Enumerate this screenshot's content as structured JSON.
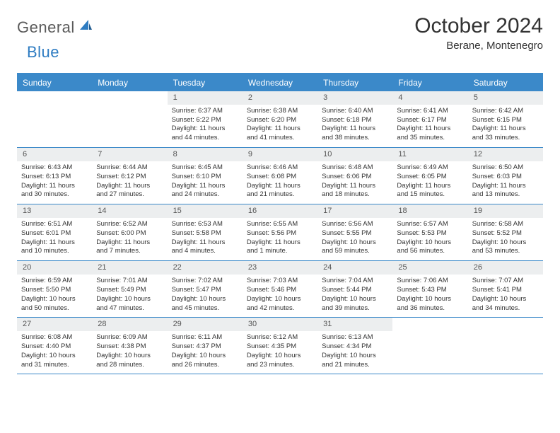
{
  "brand": {
    "text1": "General",
    "text2": "Blue"
  },
  "title": "October 2024",
  "location": "Berane, Montenegro",
  "dayHeaders": [
    "Sunday",
    "Monday",
    "Tuesday",
    "Wednesday",
    "Thursday",
    "Friday",
    "Saturday"
  ],
  "colors": {
    "headerBg": "#3b89c9",
    "dayNumBg": "#eceeef",
    "text": "#333333",
    "logoBlue": "#2e7cc2"
  },
  "weeks": [
    [
      {
        "empty": true
      },
      {
        "empty": true
      },
      {
        "num": "1",
        "sunrise": "Sunrise: 6:37 AM",
        "sunset": "Sunset: 6:22 PM",
        "daylight": "Daylight: 11 hours and 44 minutes."
      },
      {
        "num": "2",
        "sunrise": "Sunrise: 6:38 AM",
        "sunset": "Sunset: 6:20 PM",
        "daylight": "Daylight: 11 hours and 41 minutes."
      },
      {
        "num": "3",
        "sunrise": "Sunrise: 6:40 AM",
        "sunset": "Sunset: 6:18 PM",
        "daylight": "Daylight: 11 hours and 38 minutes."
      },
      {
        "num": "4",
        "sunrise": "Sunrise: 6:41 AM",
        "sunset": "Sunset: 6:17 PM",
        "daylight": "Daylight: 11 hours and 35 minutes."
      },
      {
        "num": "5",
        "sunrise": "Sunrise: 6:42 AM",
        "sunset": "Sunset: 6:15 PM",
        "daylight": "Daylight: 11 hours and 33 minutes."
      }
    ],
    [
      {
        "num": "6",
        "sunrise": "Sunrise: 6:43 AM",
        "sunset": "Sunset: 6:13 PM",
        "daylight": "Daylight: 11 hours and 30 minutes."
      },
      {
        "num": "7",
        "sunrise": "Sunrise: 6:44 AM",
        "sunset": "Sunset: 6:12 PM",
        "daylight": "Daylight: 11 hours and 27 minutes."
      },
      {
        "num": "8",
        "sunrise": "Sunrise: 6:45 AM",
        "sunset": "Sunset: 6:10 PM",
        "daylight": "Daylight: 11 hours and 24 minutes."
      },
      {
        "num": "9",
        "sunrise": "Sunrise: 6:46 AM",
        "sunset": "Sunset: 6:08 PM",
        "daylight": "Daylight: 11 hours and 21 minutes."
      },
      {
        "num": "10",
        "sunrise": "Sunrise: 6:48 AM",
        "sunset": "Sunset: 6:06 PM",
        "daylight": "Daylight: 11 hours and 18 minutes."
      },
      {
        "num": "11",
        "sunrise": "Sunrise: 6:49 AM",
        "sunset": "Sunset: 6:05 PM",
        "daylight": "Daylight: 11 hours and 15 minutes."
      },
      {
        "num": "12",
        "sunrise": "Sunrise: 6:50 AM",
        "sunset": "Sunset: 6:03 PM",
        "daylight": "Daylight: 11 hours and 13 minutes."
      }
    ],
    [
      {
        "num": "13",
        "sunrise": "Sunrise: 6:51 AM",
        "sunset": "Sunset: 6:01 PM",
        "daylight": "Daylight: 11 hours and 10 minutes."
      },
      {
        "num": "14",
        "sunrise": "Sunrise: 6:52 AM",
        "sunset": "Sunset: 6:00 PM",
        "daylight": "Daylight: 11 hours and 7 minutes."
      },
      {
        "num": "15",
        "sunrise": "Sunrise: 6:53 AM",
        "sunset": "Sunset: 5:58 PM",
        "daylight": "Daylight: 11 hours and 4 minutes."
      },
      {
        "num": "16",
        "sunrise": "Sunrise: 6:55 AM",
        "sunset": "Sunset: 5:56 PM",
        "daylight": "Daylight: 11 hours and 1 minute."
      },
      {
        "num": "17",
        "sunrise": "Sunrise: 6:56 AM",
        "sunset": "Sunset: 5:55 PM",
        "daylight": "Daylight: 10 hours and 59 minutes."
      },
      {
        "num": "18",
        "sunrise": "Sunrise: 6:57 AM",
        "sunset": "Sunset: 5:53 PM",
        "daylight": "Daylight: 10 hours and 56 minutes."
      },
      {
        "num": "19",
        "sunrise": "Sunrise: 6:58 AM",
        "sunset": "Sunset: 5:52 PM",
        "daylight": "Daylight: 10 hours and 53 minutes."
      }
    ],
    [
      {
        "num": "20",
        "sunrise": "Sunrise: 6:59 AM",
        "sunset": "Sunset: 5:50 PM",
        "daylight": "Daylight: 10 hours and 50 minutes."
      },
      {
        "num": "21",
        "sunrise": "Sunrise: 7:01 AM",
        "sunset": "Sunset: 5:49 PM",
        "daylight": "Daylight: 10 hours and 47 minutes."
      },
      {
        "num": "22",
        "sunrise": "Sunrise: 7:02 AM",
        "sunset": "Sunset: 5:47 PM",
        "daylight": "Daylight: 10 hours and 45 minutes."
      },
      {
        "num": "23",
        "sunrise": "Sunrise: 7:03 AM",
        "sunset": "Sunset: 5:46 PM",
        "daylight": "Daylight: 10 hours and 42 minutes."
      },
      {
        "num": "24",
        "sunrise": "Sunrise: 7:04 AM",
        "sunset": "Sunset: 5:44 PM",
        "daylight": "Daylight: 10 hours and 39 minutes."
      },
      {
        "num": "25",
        "sunrise": "Sunrise: 7:06 AM",
        "sunset": "Sunset: 5:43 PM",
        "daylight": "Daylight: 10 hours and 36 minutes."
      },
      {
        "num": "26",
        "sunrise": "Sunrise: 7:07 AM",
        "sunset": "Sunset: 5:41 PM",
        "daylight": "Daylight: 10 hours and 34 minutes."
      }
    ],
    [
      {
        "num": "27",
        "sunrise": "Sunrise: 6:08 AM",
        "sunset": "Sunset: 4:40 PM",
        "daylight": "Daylight: 10 hours and 31 minutes."
      },
      {
        "num": "28",
        "sunrise": "Sunrise: 6:09 AM",
        "sunset": "Sunset: 4:38 PM",
        "daylight": "Daylight: 10 hours and 28 minutes."
      },
      {
        "num": "29",
        "sunrise": "Sunrise: 6:11 AM",
        "sunset": "Sunset: 4:37 PM",
        "daylight": "Daylight: 10 hours and 26 minutes."
      },
      {
        "num": "30",
        "sunrise": "Sunrise: 6:12 AM",
        "sunset": "Sunset: 4:35 PM",
        "daylight": "Daylight: 10 hours and 23 minutes."
      },
      {
        "num": "31",
        "sunrise": "Sunrise: 6:13 AM",
        "sunset": "Sunset: 4:34 PM",
        "daylight": "Daylight: 10 hours and 21 minutes."
      },
      {
        "empty": true
      },
      {
        "empty": true
      }
    ]
  ]
}
